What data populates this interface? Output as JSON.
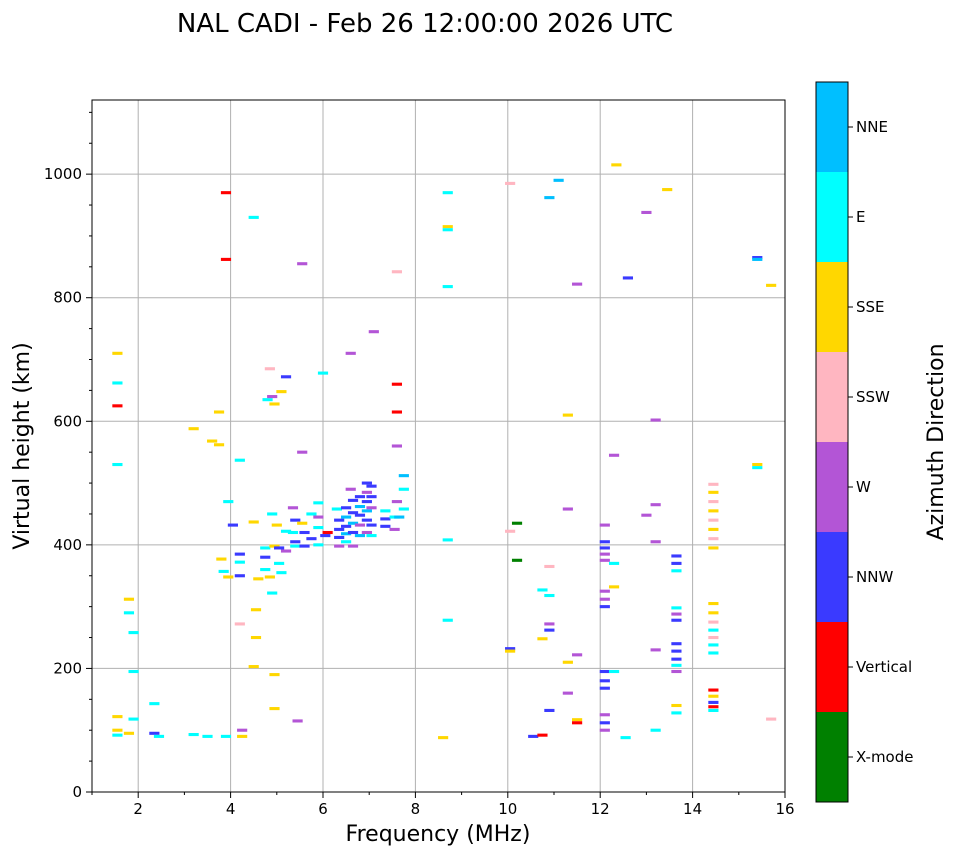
{
  "chart_data": {
    "type": "scatter",
    "title": "NAL CADI - Feb 26 12:00:00 2026 UTC",
    "xlabel": "Frequency (MHz)",
    "ylabel": "Virtual height (km)",
    "xlim": [
      1,
      16
    ],
    "ylim": [
      0,
      1120
    ],
    "x_ticks": [
      2,
      4,
      6,
      8,
      10,
      12,
      14,
      16
    ],
    "y_ticks": [
      0,
      200,
      400,
      600,
      800,
      1000
    ],
    "grid": true,
    "colorbar": {
      "label": "Azimuth Direction",
      "categories": [
        "X-mode",
        "Vertical",
        "NNW",
        "W",
        "SSW",
        "SSE",
        "E",
        "NNE"
      ],
      "colors": [
        "#008000",
        "#ff0000",
        "#3a3aff",
        "#b355d6",
        "#ffb6c1",
        "#ffd700",
        "#00ffff",
        "#00bfff"
      ]
    },
    "echoes": [
      {
        "f": 1.55,
        "h": 710,
        "d": "SSE"
      },
      {
        "f": 1.55,
        "h": 662,
        "d": "E"
      },
      {
        "f": 1.55,
        "h": 625,
        "d": "Vertical"
      },
      {
        "f": 1.55,
        "h": 530,
        "d": "E"
      },
      {
        "f": 1.55,
        "h": 122,
        "d": "SSE"
      },
      {
        "f": 1.55,
        "h": 100,
        "d": "SSE"
      },
      {
        "f": 1.55,
        "h": 92,
        "d": "E"
      },
      {
        "f": 1.8,
        "h": 312,
        "d": "SSE"
      },
      {
        "f": 1.8,
        "h": 290,
        "d": "E"
      },
      {
        "f": 1.9,
        "h": 258,
        "d": "E"
      },
      {
        "f": 1.9,
        "h": 195,
        "d": "E"
      },
      {
        "f": 1.9,
        "h": 118,
        "d": "E"
      },
      {
        "f": 1.8,
        "h": 95,
        "d": "SSE"
      },
      {
        "f": 2.35,
        "h": 143,
        "d": "E"
      },
      {
        "f": 2.35,
        "h": 95,
        "d": "NNW"
      },
      {
        "f": 2.45,
        "h": 90,
        "d": "E"
      },
      {
        "f": 3.2,
        "h": 588,
        "d": "SSE"
      },
      {
        "f": 3.2,
        "h": 93,
        "d": "E"
      },
      {
        "f": 3.6,
        "h": 568,
        "d": "SSE"
      },
      {
        "f": 3.75,
        "h": 615,
        "d": "SSE"
      },
      {
        "f": 3.75,
        "h": 562,
        "d": "SSE"
      },
      {
        "f": 3.5,
        "h": 90,
        "d": "E"
      },
      {
        "f": 3.8,
        "h": 377,
        "d": "SSE"
      },
      {
        "f": 3.85,
        "h": 357,
        "d": "E"
      },
      {
        "f": 3.9,
        "h": 970,
        "d": "Vertical"
      },
      {
        "f": 3.9,
        "h": 862,
        "d": "Vertical"
      },
      {
        "f": 3.95,
        "h": 470,
        "d": "E"
      },
      {
        "f": 3.95,
        "h": 348,
        "d": "SSE"
      },
      {
        "f": 3.9,
        "h": 90,
        "d": "E"
      },
      {
        "f": 4.05,
        "h": 432,
        "d": "NNW"
      },
      {
        "f": 4.2,
        "h": 537,
        "d": "E"
      },
      {
        "f": 4.2,
        "h": 385,
        "d": "NNW"
      },
      {
        "f": 4.2,
        "h": 372,
        "d": "E"
      },
      {
        "f": 4.2,
        "h": 350,
        "d": "NNW"
      },
      {
        "f": 4.2,
        "h": 272,
        "d": "SSW"
      },
      {
        "f": 4.25,
        "h": 100,
        "d": "W"
      },
      {
        "f": 4.25,
        "h": 90,
        "d": "SSE"
      },
      {
        "f": 4.5,
        "h": 930,
        "d": "E"
      },
      {
        "f": 4.5,
        "h": 437,
        "d": "SSE"
      },
      {
        "f": 4.55,
        "h": 295,
        "d": "SSE"
      },
      {
        "f": 4.55,
        "h": 250,
        "d": "SSE"
      },
      {
        "f": 4.5,
        "h": 203,
        "d": "SSE"
      },
      {
        "f": 4.6,
        "h": 345,
        "d": "SSE"
      },
      {
        "f": 4.75,
        "h": 395,
        "d": "E"
      },
      {
        "f": 4.75,
        "h": 380,
        "d": "NNW"
      },
      {
        "f": 4.75,
        "h": 360,
        "d": "E"
      },
      {
        "f": 4.8,
        "h": 635,
        "d": "E"
      },
      {
        "f": 4.85,
        "h": 685,
        "d": "SSW"
      },
      {
        "f": 4.85,
        "h": 348,
        "d": "SSE"
      },
      {
        "f": 4.9,
        "h": 640,
        "d": "W"
      },
      {
        "f": 4.9,
        "h": 450,
        "d": "E"
      },
      {
        "f": 4.95,
        "h": 628,
        "d": "SSE"
      },
      {
        "f": 4.95,
        "h": 398,
        "d": "SSE"
      },
      {
        "f": 4.9,
        "h": 322,
        "d": "E"
      },
      {
        "f": 4.95,
        "h": 190,
        "d": "SSE"
      },
      {
        "f": 4.95,
        "h": 135,
        "d": "SSE"
      },
      {
        "f": 5.0,
        "h": 432,
        "d": "SSE"
      },
      {
        "f": 5.05,
        "h": 395,
        "d": "NNW"
      },
      {
        "f": 5.05,
        "h": 370,
        "d": "E"
      },
      {
        "f": 5.1,
        "h": 648,
        "d": "SSE"
      },
      {
        "f": 5.1,
        "h": 355,
        "d": "E"
      },
      {
        "f": 5.2,
        "h": 672,
        "d": "NNW"
      },
      {
        "f": 5.2,
        "h": 422,
        "d": "E"
      },
      {
        "f": 5.2,
        "h": 390,
        "d": "W"
      },
      {
        "f": 5.35,
        "h": 460,
        "d": "W"
      },
      {
        "f": 5.35,
        "h": 420,
        "d": "E"
      },
      {
        "f": 5.4,
        "h": 440,
        "d": "NNW"
      },
      {
        "f": 5.4,
        "h": 405,
        "d": "NNW"
      },
      {
        "f": 5.4,
        "h": 398,
        "d": "E"
      },
      {
        "f": 5.45,
        "h": 115,
        "d": "W"
      },
      {
        "f": 5.55,
        "h": 855,
        "d": "W"
      },
      {
        "f": 5.55,
        "h": 550,
        "d": "W"
      },
      {
        "f": 5.55,
        "h": 435,
        "d": "SSE"
      },
      {
        "f": 5.6,
        "h": 420,
        "d": "NNW"
      },
      {
        "f": 5.6,
        "h": 398,
        "d": "NNW"
      },
      {
        "f": 5.75,
        "h": 450,
        "d": "E"
      },
      {
        "f": 5.75,
        "h": 410,
        "d": "NNW"
      },
      {
        "f": 5.9,
        "h": 468,
        "d": "E"
      },
      {
        "f": 5.9,
        "h": 445,
        "d": "W"
      },
      {
        "f": 5.9,
        "h": 428,
        "d": "E"
      },
      {
        "f": 5.9,
        "h": 400,
        "d": "E"
      },
      {
        "f": 6.0,
        "h": 678,
        "d": "E"
      },
      {
        "f": 6.05,
        "h": 415,
        "d": "NNW"
      },
      {
        "f": 6.1,
        "h": 420,
        "d": "Vertical"
      },
      {
        "f": 6.3,
        "h": 458,
        "d": "E"
      },
      {
        "f": 6.35,
        "h": 440,
        "d": "NNW"
      },
      {
        "f": 6.35,
        "h": 425,
        "d": "NNW"
      },
      {
        "f": 6.35,
        "h": 412,
        "d": "NNW"
      },
      {
        "f": 6.35,
        "h": 398,
        "d": "W"
      },
      {
        "f": 6.5,
        "h": 460,
        "d": "NNW"
      },
      {
        "f": 6.5,
        "h": 445,
        "d": "NNE"
      },
      {
        "f": 6.5,
        "h": 430,
        "d": "NNW"
      },
      {
        "f": 6.5,
        "h": 418,
        "d": "NNE"
      },
      {
        "f": 6.5,
        "h": 405,
        "d": "E"
      },
      {
        "f": 6.6,
        "h": 710,
        "d": "W"
      },
      {
        "f": 6.6,
        "h": 490,
        "d": "W"
      },
      {
        "f": 6.65,
        "h": 472,
        "d": "NNW"
      },
      {
        "f": 6.65,
        "h": 452,
        "d": "NNW"
      },
      {
        "f": 6.65,
        "h": 435,
        "d": "NNE"
      },
      {
        "f": 6.65,
        "h": 420,
        "d": "NNW"
      },
      {
        "f": 6.65,
        "h": 398,
        "d": "W"
      },
      {
        "f": 6.8,
        "h": 478,
        "d": "NNW"
      },
      {
        "f": 6.8,
        "h": 462,
        "d": "NNE"
      },
      {
        "f": 6.8,
        "h": 448,
        "d": "NNW"
      },
      {
        "f": 6.8,
        "h": 432,
        "d": "W"
      },
      {
        "f": 6.8,
        "h": 415,
        "d": "NNE"
      },
      {
        "f": 6.95,
        "h": 500,
        "d": "NNW"
      },
      {
        "f": 6.95,
        "h": 485,
        "d": "W"
      },
      {
        "f": 6.95,
        "h": 470,
        "d": "NNW"
      },
      {
        "f": 6.95,
        "h": 455,
        "d": "NNE"
      },
      {
        "f": 6.95,
        "h": 440,
        "d": "NNW"
      },
      {
        "f": 6.95,
        "h": 420,
        "d": "W"
      },
      {
        "f": 7.05,
        "h": 495,
        "d": "NNW"
      },
      {
        "f": 7.05,
        "h": 478,
        "d": "NNW"
      },
      {
        "f": 7.05,
        "h": 460,
        "d": "W"
      },
      {
        "f": 7.05,
        "h": 432,
        "d": "NNW"
      },
      {
        "f": 7.05,
        "h": 415,
        "d": "E"
      },
      {
        "f": 7.1,
        "h": 745,
        "d": "W"
      },
      {
        "f": 7.35,
        "h": 455,
        "d": "E"
      },
      {
        "f": 7.35,
        "h": 442,
        "d": "NNW"
      },
      {
        "f": 7.35,
        "h": 430,
        "d": "NNW"
      },
      {
        "f": 7.55,
        "h": 445,
        "d": "E"
      },
      {
        "f": 7.55,
        "h": 425,
        "d": "W"
      },
      {
        "f": 7.6,
        "h": 842,
        "d": "SSW"
      },
      {
        "f": 7.6,
        "h": 660,
        "d": "Vertical"
      },
      {
        "f": 7.6,
        "h": 615,
        "d": "Vertical"
      },
      {
        "f": 7.6,
        "h": 560,
        "d": "W"
      },
      {
        "f": 7.6,
        "h": 470,
        "d": "W"
      },
      {
        "f": 7.65,
        "h": 445,
        "d": "NNE"
      },
      {
        "f": 7.75,
        "h": 512,
        "d": "NNE"
      },
      {
        "f": 7.75,
        "h": 490,
        "d": "E"
      },
      {
        "f": 7.75,
        "h": 458,
        "d": "E"
      },
      {
        "f": 8.6,
        "h": 88,
        "d": "SSE"
      },
      {
        "f": 8.7,
        "h": 970,
        "d": "E"
      },
      {
        "f": 8.7,
        "h": 915,
        "d": "SSE"
      },
      {
        "f": 8.7,
        "h": 910,
        "d": "E"
      },
      {
        "f": 8.7,
        "h": 818,
        "d": "E"
      },
      {
        "f": 8.7,
        "h": 408,
        "d": "E"
      },
      {
        "f": 8.7,
        "h": 278,
        "d": "E"
      },
      {
        "f": 10.05,
        "h": 985,
        "d": "SSW"
      },
      {
        "f": 10.05,
        "h": 422,
        "d": "SSW"
      },
      {
        "f": 10.05,
        "h": 232,
        "d": "NNW"
      },
      {
        "f": 10.05,
        "h": 228,
        "d": "SSE"
      },
      {
        "f": 10.2,
        "h": 435,
        "d": "X-mode"
      },
      {
        "f": 10.2,
        "h": 375,
        "d": "X-mode"
      },
      {
        "f": 10.55,
        "h": 90,
        "d": "NNW"
      },
      {
        "f": 10.75,
        "h": 92,
        "d": "Vertical"
      },
      {
        "f": 10.75,
        "h": 248,
        "d": "SSE"
      },
      {
        "f": 10.75,
        "h": 327,
        "d": "E"
      },
      {
        "f": 10.9,
        "h": 962,
        "d": "NNE"
      },
      {
        "f": 10.9,
        "h": 365,
        "d": "SSW"
      },
      {
        "f": 10.9,
        "h": 318,
        "d": "E"
      },
      {
        "f": 10.9,
        "h": 272,
        "d": "W"
      },
      {
        "f": 10.9,
        "h": 262,
        "d": "NNW"
      },
      {
        "f": 10.9,
        "h": 132,
        "d": "NNW"
      },
      {
        "f": 11.1,
        "h": 990,
        "d": "NNE"
      },
      {
        "f": 11.3,
        "h": 610,
        "d": "SSE"
      },
      {
        "f": 11.3,
        "h": 458,
        "d": "W"
      },
      {
        "f": 11.3,
        "h": 210,
        "d": "SSE"
      },
      {
        "f": 11.3,
        "h": 160,
        "d": "W"
      },
      {
        "f": 11.5,
        "h": 822,
        "d": "W"
      },
      {
        "f": 11.5,
        "h": 222,
        "d": "W"
      },
      {
        "f": 11.5,
        "h": 117,
        "d": "SSE"
      },
      {
        "f": 11.5,
        "h": 112,
        "d": "Vertical"
      },
      {
        "f": 12.1,
        "h": 432,
        "d": "W"
      },
      {
        "f": 12.1,
        "h": 405,
        "d": "NNW"
      },
      {
        "f": 12.1,
        "h": 395,
        "d": "NNW"
      },
      {
        "f": 12.1,
        "h": 385,
        "d": "W"
      },
      {
        "f": 12.1,
        "h": 375,
        "d": "W"
      },
      {
        "f": 12.1,
        "h": 325,
        "d": "W"
      },
      {
        "f": 12.1,
        "h": 312,
        "d": "W"
      },
      {
        "f": 12.1,
        "h": 300,
        "d": "NNW"
      },
      {
        "f": 12.1,
        "h": 195,
        "d": "NNW"
      },
      {
        "f": 12.1,
        "h": 180,
        "d": "NNW"
      },
      {
        "f": 12.1,
        "h": 168,
        "d": "NNW"
      },
      {
        "f": 12.1,
        "h": 125,
        "d": "W"
      },
      {
        "f": 12.1,
        "h": 112,
        "d": "NNW"
      },
      {
        "f": 12.1,
        "h": 100,
        "d": "W"
      },
      {
        "f": 12.35,
        "h": 1015,
        "d": "SSE"
      },
      {
        "f": 12.3,
        "h": 545,
        "d": "W"
      },
      {
        "f": 12.3,
        "h": 370,
        "d": "E"
      },
      {
        "f": 12.3,
        "h": 332,
        "d": "SSE"
      },
      {
        "f": 12.3,
        "h": 195,
        "d": "E"
      },
      {
        "f": 12.55,
        "h": 88,
        "d": "E"
      },
      {
        "f": 12.6,
        "h": 832,
        "d": "NNW"
      },
      {
        "f": 13.0,
        "h": 938,
        "d": "W"
      },
      {
        "f": 13.0,
        "h": 448,
        "d": "W"
      },
      {
        "f": 13.2,
        "h": 602,
        "d": "W"
      },
      {
        "f": 13.2,
        "h": 465,
        "d": "W"
      },
      {
        "f": 13.2,
        "h": 405,
        "d": "W"
      },
      {
        "f": 13.2,
        "h": 230,
        "d": "W"
      },
      {
        "f": 13.2,
        "h": 100,
        "d": "E"
      },
      {
        "f": 13.45,
        "h": 975,
        "d": "SSE"
      },
      {
        "f": 13.65,
        "h": 382,
        "d": "NNW"
      },
      {
        "f": 13.65,
        "h": 370,
        "d": "NNW"
      },
      {
        "f": 13.65,
        "h": 358,
        "d": "E"
      },
      {
        "f": 13.65,
        "h": 298,
        "d": "E"
      },
      {
        "f": 13.65,
        "h": 288,
        "d": "W"
      },
      {
        "f": 13.65,
        "h": 278,
        "d": "NNW"
      },
      {
        "f": 13.65,
        "h": 240,
        "d": "NNW"
      },
      {
        "f": 13.65,
        "h": 228,
        "d": "NNW"
      },
      {
        "f": 13.65,
        "h": 215,
        "d": "NNW"
      },
      {
        "f": 13.65,
        "h": 205,
        "d": "E"
      },
      {
        "f": 13.65,
        "h": 195,
        "d": "W"
      },
      {
        "f": 13.65,
        "h": 140,
        "d": "SSE"
      },
      {
        "f": 13.65,
        "h": 128,
        "d": "E"
      },
      {
        "f": 14.45,
        "h": 498,
        "d": "SSW"
      },
      {
        "f": 14.45,
        "h": 485,
        "d": "SSE"
      },
      {
        "f": 14.45,
        "h": 470,
        "d": "SSW"
      },
      {
        "f": 14.45,
        "h": 455,
        "d": "SSE"
      },
      {
        "f": 14.45,
        "h": 440,
        "d": "SSW"
      },
      {
        "f": 14.45,
        "h": 425,
        "d": "SSE"
      },
      {
        "f": 14.45,
        "h": 410,
        "d": "SSW"
      },
      {
        "f": 14.45,
        "h": 395,
        "d": "SSE"
      },
      {
        "f": 14.45,
        "h": 305,
        "d": "SSE"
      },
      {
        "f": 14.45,
        "h": 290,
        "d": "SSE"
      },
      {
        "f": 14.45,
        "h": 275,
        "d": "SSW"
      },
      {
        "f": 14.45,
        "h": 262,
        "d": "E"
      },
      {
        "f": 14.45,
        "h": 250,
        "d": "SSW"
      },
      {
        "f": 14.45,
        "h": 238,
        "d": "E"
      },
      {
        "f": 14.45,
        "h": 225,
        "d": "E"
      },
      {
        "f": 14.45,
        "h": 165,
        "d": "Vertical"
      },
      {
        "f": 14.45,
        "h": 155,
        "d": "SSE"
      },
      {
        "f": 14.45,
        "h": 145,
        "d": "NNW"
      },
      {
        "f": 14.45,
        "h": 138,
        "d": "Vertical"
      },
      {
        "f": 14.45,
        "h": 132,
        "d": "E"
      },
      {
        "f": 15.4,
        "h": 865,
        "d": "NNW"
      },
      {
        "f": 15.4,
        "h": 862,
        "d": "NNE"
      },
      {
        "f": 15.4,
        "h": 530,
        "d": "SSE"
      },
      {
        "f": 15.4,
        "h": 525,
        "d": "E"
      },
      {
        "f": 15.7,
        "h": 820,
        "d": "SSE"
      },
      {
        "f": 15.7,
        "h": 118,
        "d": "SSW"
      }
    ]
  }
}
